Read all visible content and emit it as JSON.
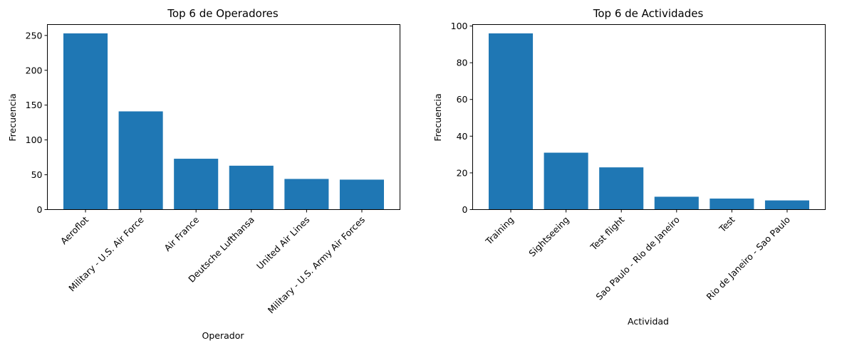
{
  "chart_data": [
    {
      "type": "bar",
      "title": "Top 6 de Operadores",
      "xlabel": "Operador",
      "ylabel": "Frecuencia",
      "categories": [
        "Aeroflot",
        "Military - U.S. Air Force",
        "Air France",
        "Deutsche Lufthansa",
        "United Air Lines",
        "Military - U.S. Army Air Forces"
      ],
      "values": [
        253,
        141,
        73,
        63,
        44,
        43
      ],
      "ylim": [
        0,
        265.65
      ],
      "yticks": [
        0,
        50,
        100,
        150,
        200,
        250
      ],
      "color": "#1f77b4",
      "grid": false
    },
    {
      "type": "bar",
      "title": "Top 6 de Actividades",
      "xlabel": "Actividad",
      "ylabel": "Frecuencia",
      "categories": [
        "Training",
        "Sightseeing",
        "Test flight",
        "Sao Paulo - Rio de Janeiro",
        "Test",
        "Rio de Janeiro - Sao Paulo"
      ],
      "values": [
        96,
        31,
        23,
        7,
        6,
        5
      ],
      "ylim": [
        0,
        100.8
      ],
      "yticks": [
        0,
        20,
        40,
        60,
        80,
        100
      ],
      "color": "#1f77b4",
      "grid": false
    }
  ]
}
